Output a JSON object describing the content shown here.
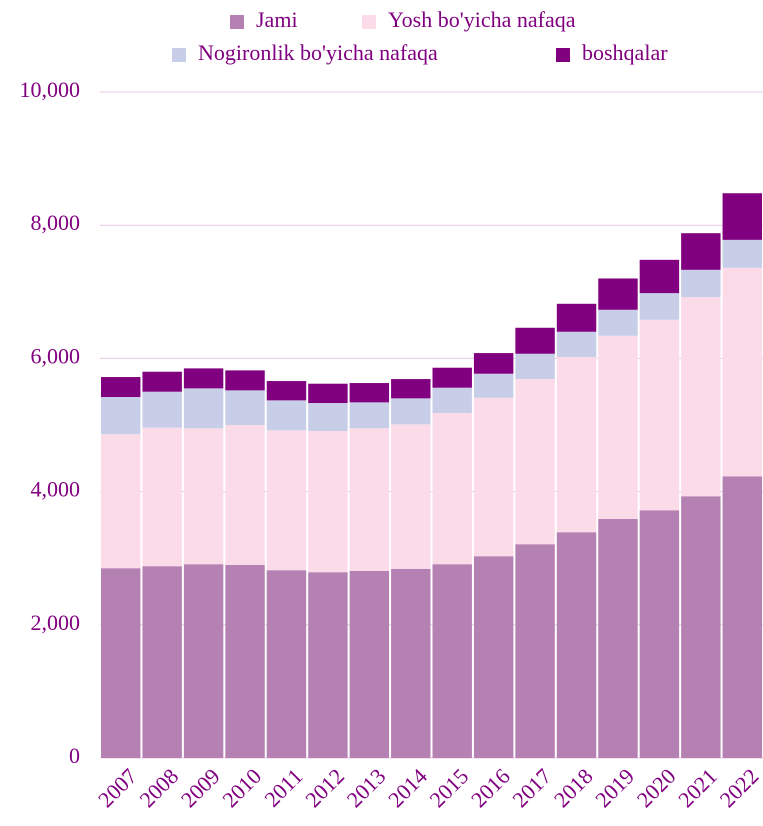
{
  "chart_data": {
    "type": "stacked_bar",
    "categories": [
      "2007",
      "2008",
      "2009",
      "2010",
      "2011",
      "2012",
      "2013",
      "2014",
      "2015",
      "2016",
      "2017",
      "2018",
      "2019",
      "2020",
      "2021",
      "2022"
    ],
    "series": [
      {
        "name": "Jami",
        "color": "#b581b3",
        "values": [
          2850,
          2880,
          2910,
          2900,
          2820,
          2790,
          2810,
          2840,
          2910,
          3030,
          3210,
          3390,
          3590,
          3720,
          3930,
          4230
        ]
      },
      {
        "name": "Yosh bo'yicha nafaqa",
        "color": "#fcdbe9",
        "values": [
          2010,
          2080,
          2040,
          2100,
          2100,
          2120,
          2140,
          2170,
          2270,
          2380,
          2480,
          2630,
          2750,
          2860,
          2990,
          3130
        ]
      },
      {
        "name": "Nogironlik bo'yicha nafaqa",
        "color": "#c8cee8",
        "values": [
          560,
          540,
          600,
          520,
          450,
          420,
          390,
          390,
          380,
          360,
          380,
          380,
          390,
          400,
          410,
          420
        ]
      },
      {
        "name": "boshqalar",
        "color": "#800080",
        "values": [
          300,
          300,
          300,
          300,
          290,
          290,
          290,
          290,
          300,
          310,
          390,
          420,
          470,
          500,
          550,
          700
        ]
      }
    ],
    "ylim": [
      0,
      10000
    ],
    "yticks": [
      0,
      {
        "value": 2000,
        "label": "2,000"
      },
      {
        "value": 4000,
        "label": "4,000"
      },
      {
        "value": 6000,
        "label": "6,000"
      },
      {
        "value": 8000,
        "label": "8,000"
      },
      {
        "value": 10000,
        "label": "10,000"
      }
    ],
    "grid": true,
    "legend": "top"
  }
}
